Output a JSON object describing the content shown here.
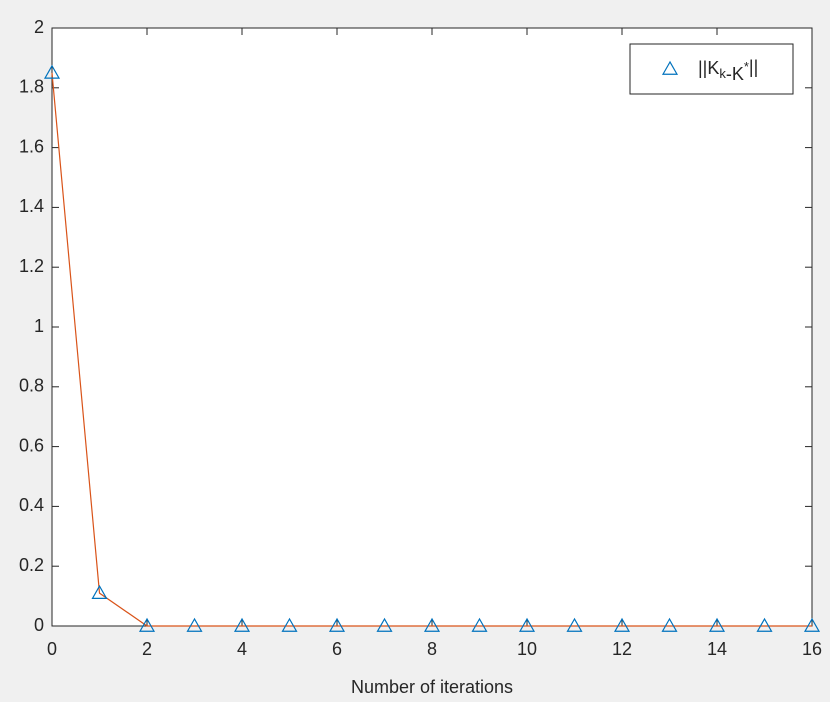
{
  "chart_data": {
    "type": "line",
    "xlabel": "Number of iterations",
    "x": [
      0,
      1,
      2,
      3,
      4,
      5,
      6,
      7,
      8,
      9,
      10,
      11,
      12,
      13,
      14,
      15,
      16
    ],
    "series": [
      {
        "name": "||K_k-K^*||",
        "marker": "triangle",
        "marker_color": "#0072bd",
        "line_color": "#d95319",
        "values": [
          1.85,
          0.11,
          0,
          0,
          0,
          0,
          0,
          0,
          0,
          0,
          0,
          0,
          0,
          0,
          0,
          0,
          0
        ]
      }
    ],
    "xlim": [
      0,
      16
    ],
    "xticks": [
      0,
      2,
      4,
      6,
      8,
      10,
      12,
      14,
      16
    ],
    "ylim": [
      0,
      2
    ],
    "yticks": [
      0,
      0.2,
      0.4,
      0.6,
      0.8,
      1,
      1.2,
      1.4,
      1.6,
      1.8,
      2
    ],
    "grid": false,
    "legend": "top-right"
  }
}
